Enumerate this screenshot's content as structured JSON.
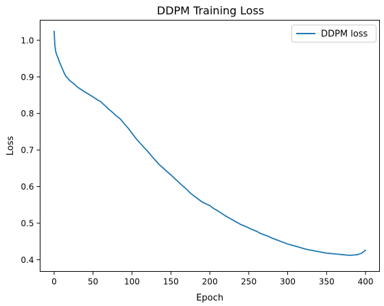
{
  "chart_data": {
    "type": "line",
    "title": "DDPM Training Loss",
    "xlabel": "Epoch",
    "ylabel": "Loss",
    "xlim": [
      -18,
      418
    ],
    "ylim": [
      0.368,
      1.055
    ],
    "xticks": [
      0,
      50,
      100,
      150,
      200,
      250,
      300,
      350,
      400
    ],
    "yticks": [
      0.4,
      0.5,
      0.6,
      0.7,
      0.8,
      0.9,
      1.0
    ],
    "xtick_labels": [
      "0",
      "50",
      "100",
      "150",
      "200",
      "250",
      "300",
      "350",
      "400"
    ],
    "ytick_labels": [
      "0.4",
      "0.5",
      "0.6",
      "0.7",
      "0.8",
      "0.9",
      "1.0"
    ],
    "grid": false,
    "legend_position": "top-right",
    "series": [
      {
        "name": "DDPM loss",
        "color": "#1f77b4",
        "x": [
          0,
          1,
          2,
          3,
          5,
          7,
          10,
          13,
          15,
          20,
          25,
          30,
          35,
          40,
          45,
          50,
          55,
          60,
          65,
          70,
          75,
          80,
          85,
          90,
          95,
          100,
          105,
          110,
          115,
          120,
          125,
          130,
          135,
          140,
          145,
          150,
          155,
          160,
          165,
          170,
          175,
          180,
          185,
          190,
          195,
          200,
          205,
          210,
          215,
          220,
          225,
          230,
          235,
          240,
          245,
          250,
          255,
          260,
          265,
          270,
          275,
          280,
          285,
          290,
          295,
          300,
          305,
          310,
          315,
          320,
          325,
          330,
          335,
          340,
          345,
          350,
          355,
          360,
          365,
          370,
          375,
          380,
          385,
          390,
          395,
          400
        ],
        "y": [
          1.025,
          0.985,
          0.97,
          0.962,
          0.952,
          0.94,
          0.925,
          0.91,
          0.902,
          0.89,
          0.882,
          0.872,
          0.865,
          0.858,
          0.852,
          0.845,
          0.838,
          0.832,
          0.822,
          0.812,
          0.803,
          0.793,
          0.785,
          0.772,
          0.76,
          0.746,
          0.732,
          0.72,
          0.708,
          0.697,
          0.684,
          0.672,
          0.66,
          0.651,
          0.641,
          0.632,
          0.622,
          0.612,
          0.602,
          0.593,
          0.582,
          0.574,
          0.566,
          0.558,
          0.553,
          0.548,
          0.54,
          0.534,
          0.527,
          0.52,
          0.514,
          0.508,
          0.502,
          0.496,
          0.492,
          0.487,
          0.482,
          0.478,
          0.472,
          0.468,
          0.464,
          0.459,
          0.455,
          0.451,
          0.447,
          0.443,
          0.44,
          0.437,
          0.434,
          0.431,
          0.428,
          0.426,
          0.424,
          0.422,
          0.42,
          0.418,
          0.417,
          0.416,
          0.415,
          0.414,
          0.413,
          0.412,
          0.413,
          0.414,
          0.418,
          0.426
        ]
      }
    ]
  }
}
